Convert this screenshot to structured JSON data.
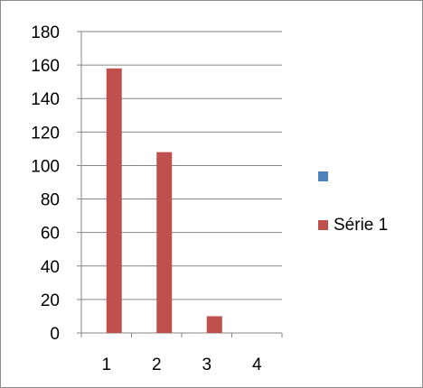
{
  "chart_data": {
    "type": "bar",
    "categories": [
      "1",
      "2",
      "3",
      "4"
    ],
    "ylim": [
      0,
      180
    ],
    "yticks": [
      0,
      20,
      40,
      60,
      80,
      100,
      120,
      140,
      160,
      180
    ],
    "grid": true,
    "legend_position": "right",
    "series": [
      {
        "name": "",
        "color": "#4f81bd",
        "values": [
          0,
          0,
          0,
          0
        ]
      },
      {
        "name": "Série 1",
        "color": "#c0504d",
        "values": [
          158,
          108,
          10,
          0
        ]
      }
    ]
  }
}
